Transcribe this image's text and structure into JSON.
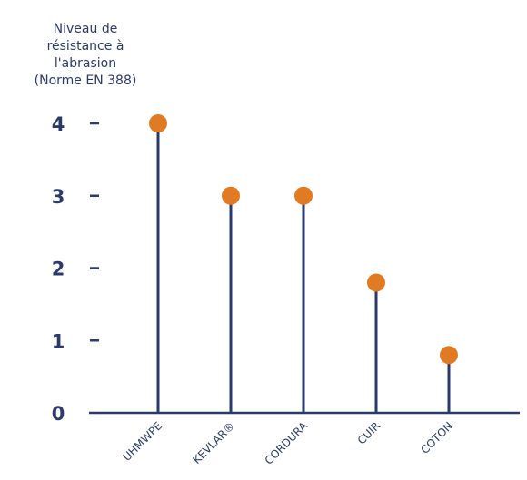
{
  "chart_data": {
    "type": "lollipop",
    "ylabel_lines": [
      "Niveau de",
      "résistance à",
      "l'abrasion",
      "(Norme EN 388)"
    ],
    "categories": [
      "UHMWPE",
      "KEVLAR®",
      "CORDURA",
      "CUIR",
      "COTON"
    ],
    "values": [
      4,
      3,
      3,
      1.8,
      0.8
    ],
    "yticks": [
      "0",
      "1",
      "2",
      "3",
      "4"
    ],
    "ylim": [
      0,
      4
    ],
    "grid": false,
    "colors": {
      "stem": "#2b3a6b",
      "marker": "#e07b24",
      "axis": "#2b3a6b",
      "text": "#2b3a6b"
    }
  }
}
